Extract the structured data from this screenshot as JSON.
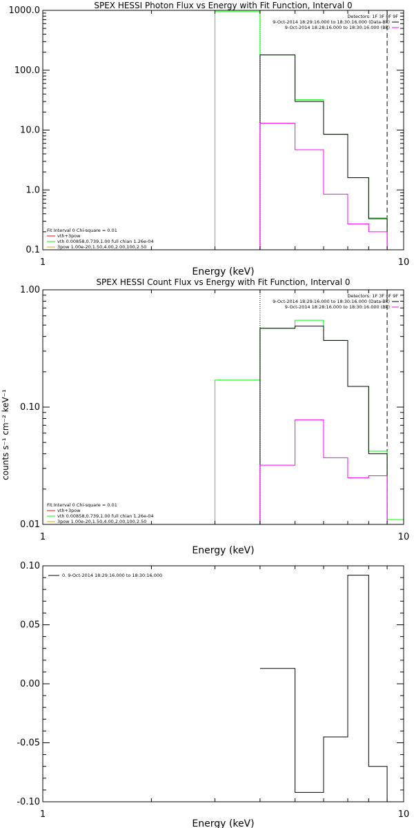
{
  "colors": {
    "black": "#000000",
    "green": "#00ff00",
    "magenta": "#ff00ff",
    "orange": "#e0a000",
    "red": "#ff0000"
  },
  "chart_data": [
    {
      "id": "photon",
      "type": "line",
      "title": "SPEX HESSI Photon Flux vs Energy with Fit Function, Interval 0",
      "xlabel": "Energy (keV)",
      "ylabel": "",
      "xscale": "log",
      "yscale": "log",
      "xlim": [
        1,
        10
      ],
      "ylim": [
        0.1,
        1000
      ],
      "xticks": [
        1,
        10
      ],
      "xtick_labels": [
        "1",
        "10"
      ],
      "yticks": [
        0.1,
        1,
        10,
        100,
        1000
      ],
      "ytick_labels": [
        "0.1",
        "1.0",
        "10.0",
        "100.0",
        "1000.0"
      ],
      "bin_edges": [
        3,
        4,
        5,
        6,
        7,
        8,
        9
      ],
      "vlines": [
        {
          "x": 4,
          "style": "dotted",
          "color": "black"
        },
        {
          "x": 9,
          "style": "dashed",
          "color": "black"
        }
      ],
      "series": [
        {
          "color": "green",
          "values": [
            950,
            180,
            32,
            8.5,
            1.6,
            0.34
          ]
        },
        {
          "color": "black",
          "values": [
            null,
            180,
            30,
            8.5,
            1.6,
            0.33
          ]
        },
        {
          "color": "magenta",
          "values": [
            null,
            13,
            4.7,
            0.85,
            0.27,
            0.2
          ]
        }
      ],
      "legend_top": {
        "lines": [
          {
            "text": "Detectors: 1F 3F 8F 9F",
            "color": null
          },
          {
            "text": "9-Oct-2014 18:29:16.000 to 18:30:16.000 (Data-Bk)",
            "color": "black"
          },
          {
            "text": "9-Oct-2014 18:28:16.000 to 18:30:16.000 (Bk)",
            "color": "magenta"
          }
        ]
      },
      "legend_bottom": {
        "lines": [
          {
            "text": "Fit Interval 0   Chi-square = 0.01",
            "color": null
          },
          {
            "text": "vth+3pow",
            "color": "red"
          },
          {
            "text": "vth 0.00858,0.739,1.00  full chian 1.26e-04",
            "color": "green"
          },
          {
            "text": "3pow 1.00e-20,1.50,4.00,2.00,100,2.50",
            "color": "orange"
          }
        ]
      }
    },
    {
      "id": "count",
      "type": "line",
      "title": "SPEX HESSI Count Flux vs Energy with Fit Function, Interval 0",
      "xlabel": "Energy (keV)",
      "ylabel": "counts s⁻¹ cm⁻² keV⁻¹",
      "xscale": "log",
      "yscale": "log",
      "xlim": [
        1,
        10
      ],
      "ylim": [
        0.01,
        1
      ],
      "xticks": [
        1,
        10
      ],
      "xtick_labels": [
        "1",
        "10"
      ],
      "yticks": [
        0.01,
        0.1,
        1
      ],
      "ytick_labels": [
        "0.01",
        "0.10",
        "1.00"
      ],
      "bin_edges": [
        3,
        4,
        5,
        6,
        7,
        8,
        9,
        10
      ],
      "vlines": [
        {
          "x": 4,
          "style": "dotted",
          "color": "black"
        },
        {
          "x": 9,
          "style": "dashed",
          "color": "black"
        }
      ],
      "series": [
        {
          "color": "green",
          "values": [
            0.17,
            0.47,
            0.55,
            0.37,
            0.15,
            0.042,
            0.011
          ]
        },
        {
          "color": "black",
          "values": [
            null,
            0.47,
            0.49,
            0.37,
            0.15,
            0.04,
            null
          ]
        },
        {
          "color": "magenta",
          "values": [
            null,
            0.032,
            0.078,
            0.037,
            0.025,
            0.026,
            null
          ]
        }
      ],
      "legend_top": {
        "lines": [
          {
            "text": "Detectors: 1F 3F 8F 9F",
            "color": null
          },
          {
            "text": "9-Oct-2014 18:29:16.000 to 18:30:16.000 (Data-Bk)",
            "color": "black"
          },
          {
            "text": "9-Oct-2014 18:28:16.000 to 18:30:16.000 (Bk)",
            "color": "magenta"
          }
        ]
      },
      "legend_bottom": {
        "lines": [
          {
            "text": "Fit Interval 0   Chi-square = 0.01",
            "color": null
          },
          {
            "text": "vth+3pow",
            "color": "red"
          },
          {
            "text": "vth 0.00858,0.739,1.00  full chian 1.26e-04",
            "color": "green"
          },
          {
            "text": "3pow 1.00e-20,1.50,4.00,2.00,100,2.50",
            "color": "orange"
          }
        ]
      }
    },
    {
      "id": "residual",
      "type": "line",
      "title": "",
      "xlabel": "Energy (keV)",
      "ylabel": "",
      "xscale": "log",
      "yscale": "linear",
      "xlim": [
        1,
        10
      ],
      "ylim": [
        -0.1,
        0.1
      ],
      "xticks": [
        1,
        10
      ],
      "xtick_labels": [
        "1",
        "10"
      ],
      "yticks": [
        -0.1,
        -0.05,
        0,
        0.05,
        0.1
      ],
      "ytick_labels": [
        "-0.10",
        "-0.05",
        "0.00",
        "0.05",
        "0.10"
      ],
      "bin_edges": [
        4,
        5,
        6,
        7,
        8,
        9
      ],
      "vlines": [],
      "series": [
        {
          "color": "black",
          "values": [
            0.013,
            -0.092,
            -0.045,
            0.092,
            -0.07
          ]
        }
      ],
      "legend_top": {
        "lines": [
          {
            "text": "0.  9-Oct-2014 18:29:16.000 to 18:30:16.000",
            "color": "black"
          }
        ]
      },
      "legend_bottom": {
        "lines": []
      }
    }
  ]
}
